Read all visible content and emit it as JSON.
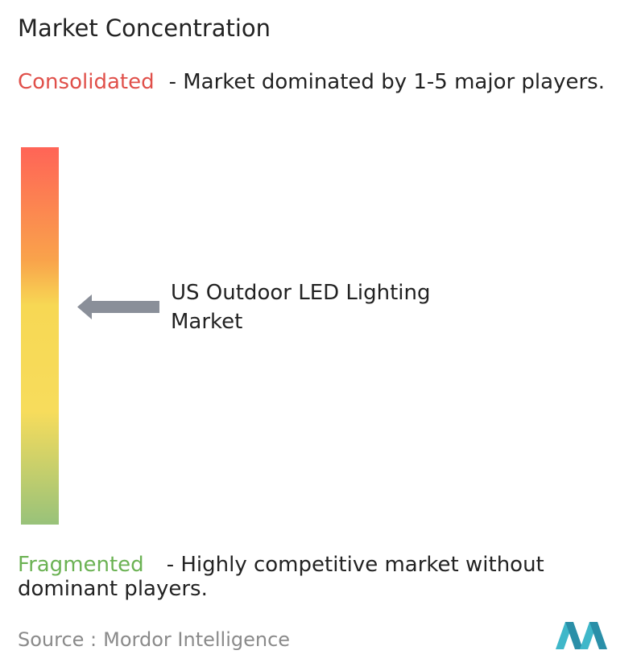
{
  "header": {
    "title": "Market Concentration"
  },
  "consolidated": {
    "label": "Consolidated",
    "description": "- Market dominated by 1-5 major players."
  },
  "marker": {
    "label": "US Outdoor LED Lighting Market"
  },
  "fragmented": {
    "label": "Fragmented",
    "description": "- Highly competitive market without dominant players."
  },
  "footer": {
    "source_label": "Source :",
    "source_name": "Mordor Intelligence"
  }
}
